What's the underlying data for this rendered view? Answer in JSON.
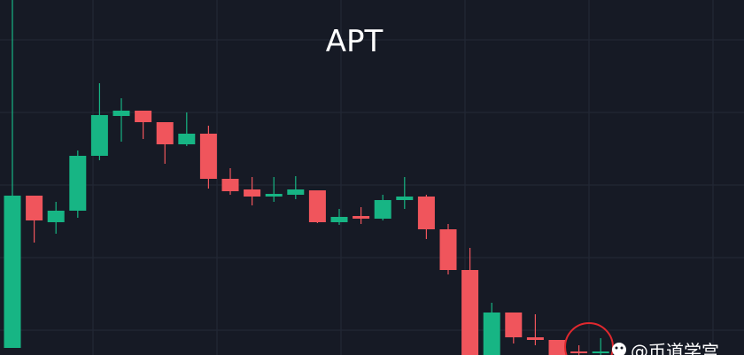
{
  "chart_data": {
    "type": "candlestick",
    "title": "APT",
    "watermark": "@币道学宫",
    "ylim": [
      0,
      401
    ],
    "up_color": "#17b584",
    "down_color": "#f0555c",
    "series": [
      {
        "open": [
          8,
          180,
          150,
          163,
          225,
          270,
          276,
          263,
          238,
          250,
          199,
          187,
          179,
          181,
          186,
          150,
          157,
          154,
          175,
          179,
          142,
          96,
          0,
          48,
          20,
          17,
          4,
          3
        ],
        "high": [
          401,
          180,
          173,
          231,
          307,
          290,
          276,
          263,
          274,
          259,
          211,
          201,
          201,
          202,
          186,
          165,
          167,
          181,
          201,
          181,
          148,
          121,
          59,
          48,
          46,
          17,
          11,
          19
        ],
        "low": [
          8,
          127,
          137,
          155,
          220,
          241,
          244,
          216,
          236,
          188,
          181,
          169,
          173,
          176,
          149,
          147,
          148,
          152,
          165,
          131,
          91,
          0,
          0,
          13,
          11,
          0,
          0,
          0
        ],
        "close": [
          180,
          152,
          163,
          225,
          271,
          276,
          263,
          238,
          250,
          199,
          185,
          179,
          182,
          187,
          150,
          156,
          154,
          175,
          179,
          142,
          96,
          0,
          48,
          20,
          17,
          0,
          3,
          4
        ]
      }
    ]
  }
}
